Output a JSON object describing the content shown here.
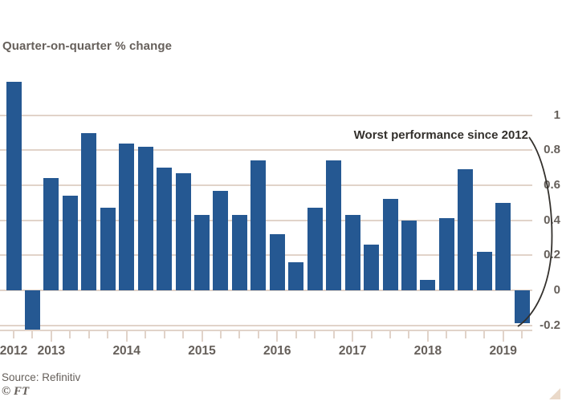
{
  "figure": {
    "subtitle": "Quarter-on-quarter % change",
    "annotation": "Worst performance since 2012",
    "source": "Source: Refinitiv",
    "credit": "© FT"
  },
  "colors": {
    "background": "#ffffff",
    "bar": "#255892",
    "grid": "#e1d3c9",
    "axis_text": "#66605b",
    "annotation_text": "#33302c",
    "callout_line": "#33302c",
    "corner_triangle": "#ead9c9"
  },
  "chart_data": {
    "type": "bar",
    "title": "",
    "subtitle": "Quarter-on-quarter % change",
    "xlabel": "",
    "ylabel": "",
    "categories": [
      "Q3 2012",
      "Q4 2012",
      "Q1 2013",
      "Q2 2013",
      "Q3 2013",
      "Q4 2013",
      "Q1 2014",
      "Q2 2014",
      "Q3 2014",
      "Q4 2014",
      "Q1 2015",
      "Q2 2015",
      "Q3 2015",
      "Q4 2015",
      "Q1 2016",
      "Q2 2016",
      "Q3 2016",
      "Q4 2016",
      "Q1 2017",
      "Q2 2017",
      "Q3 2017",
      "Q4 2017",
      "Q1 2018",
      "Q2 2018",
      "Q3 2018",
      "Q4 2018",
      "Q1 2019",
      "Q2 2019"
    ],
    "values": [
      1.19,
      -0.225,
      0.64,
      0.54,
      0.9,
      0.47,
      0.84,
      0.82,
      0.7,
      0.67,
      0.43,
      0.57,
      0.43,
      0.74,
      0.32,
      0.16,
      0.47,
      0.74,
      0.43,
      0.26,
      0.52,
      0.4,
      0.06,
      0.41,
      0.69,
      0.22,
      0.5,
      -0.19
    ],
    "y_ticks": [
      1,
      0.8,
      0.6,
      0.4,
      0.2,
      0,
      -0.2
    ],
    "x_tick_years": [
      "2012",
      "2013",
      "2014",
      "2015",
      "2016",
      "2017",
      "2018",
      "2019"
    ],
    "ylim": [
      -0.23,
      1.2
    ],
    "grid": true,
    "legend": false,
    "annotation": "Worst performance since 2012",
    "source": "Source: Refinitiv",
    "credit": "© FT"
  }
}
